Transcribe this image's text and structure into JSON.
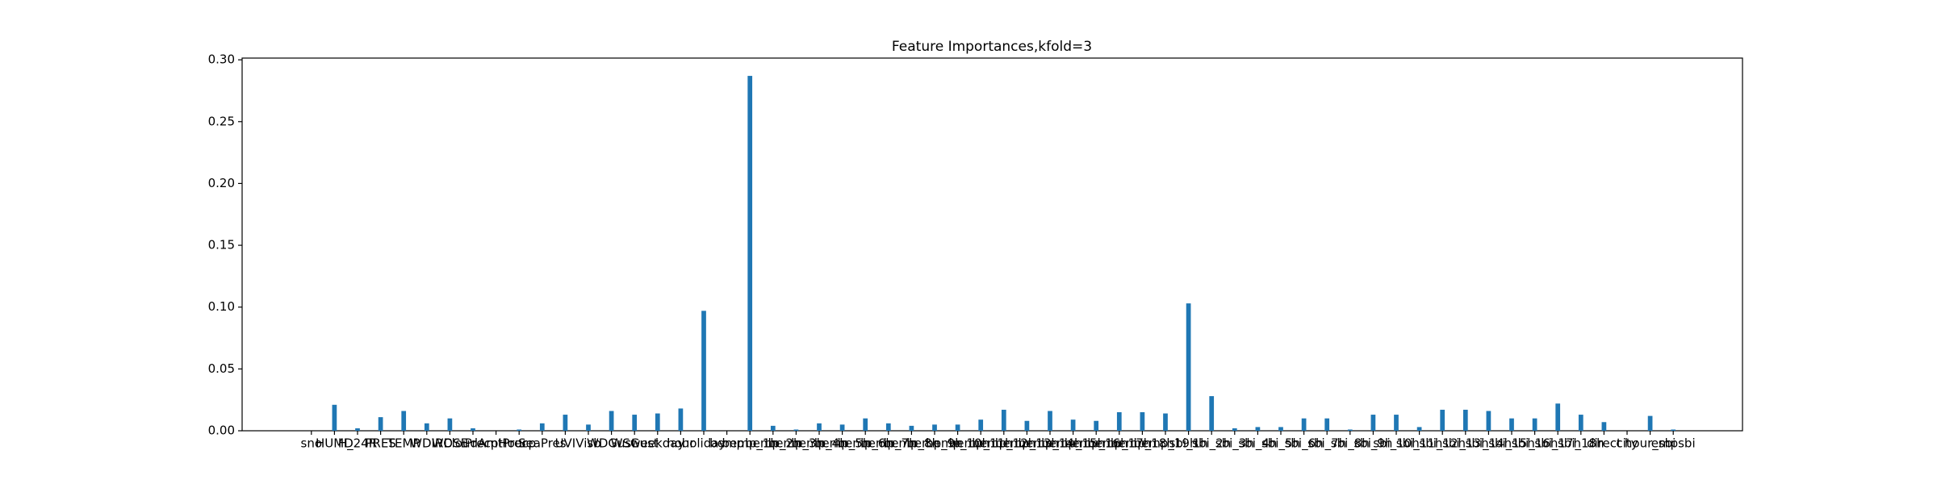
{
  "chart_data": {
    "type": "bar",
    "title": "Feature Importances,kfold=3",
    "categories": [
      "sno",
      "HUMD",
      "H_24R",
      "PRES",
      "TEMP",
      "WDIR",
      "WDSE",
      "CloudAmt",
      "PrecpHour",
      "Precp",
      "SeaPres",
      "UVI",
      "Visb",
      "WDGust",
      "WSGust",
      "weekday",
      "hour",
      "holiday",
      "bemp",
      "bemp_1h",
      "bemp_2h",
      "bemp_3h",
      "bemp_4h",
      "bemp_5h",
      "bemp_6h",
      "bemp_7h",
      "bemp_8h",
      "bemp_9h",
      "bemp_10h",
      "bemp_11h",
      "bemp_12h",
      "bemp_13h",
      "bemp_14h",
      "bemp_15h",
      "bemp_16h",
      "bemp_17h",
      "bemp_18h",
      "bemp_19h",
      "sbi_1h",
      "sbi_2h",
      "sbi_3h",
      "sbi_4h",
      "sbi_5h",
      "sbi_6h",
      "sbi_7h",
      "sbi_8h",
      "sbi_9h",
      "sbi_10h",
      "sbi_11h",
      "sbi_12h",
      "sbi_13h",
      "sbi_14h",
      "sbi_15h",
      "sbi_16h",
      "sbi_17h",
      "sbi_18h",
      "direct",
      "city",
      "hour_sbi",
      "empsbi"
    ],
    "values": [
      0,
      0.021,
      0.002,
      0.011,
      0.016,
      0.006,
      0.01,
      0.002,
      0,
      0.001,
      0.006,
      0.013,
      0.005,
      0.016,
      0.013,
      0.014,
      0.018,
      0.097,
      0,
      0.287,
      0.004,
      0.001,
      0.006,
      0.005,
      0.01,
      0.006,
      0.004,
      0.005,
      0.005,
      0.009,
      0.017,
      0.008,
      0.016,
      0.009,
      0.008,
      0.015,
      0.015,
      0.014,
      0.103,
      0.028,
      0.002,
      0.003,
      0.003,
      0.01,
      0.01,
      0.001,
      0.013,
      0.013,
      0.003,
      0.017,
      0.017,
      0.016,
      0.01,
      0.01,
      0.022,
      0.013,
      0.007,
      0,
      0.012,
      0.001
    ],
    "color": "#1f77b4",
    "ylim": [
      0,
      0.3014
    ],
    "yticks": [
      {
        "value": 0,
        "label": "0.00"
      },
      {
        "value": 0.05,
        "label": "0.05"
      },
      {
        "value": 0.1,
        "label": "0.10"
      },
      {
        "value": 0.15,
        "label": "0.15"
      },
      {
        "value": 0.2,
        "label": "0.20"
      },
      {
        "value": 0.25,
        "label": "0.25"
      },
      {
        "value": 0.3,
        "label": "0.30"
      }
    ]
  }
}
